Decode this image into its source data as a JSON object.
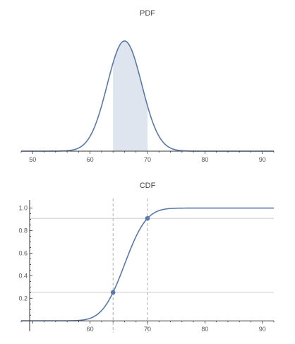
{
  "colors": {
    "curve": "#5b78ad",
    "shade": "#dfe5ef",
    "ref_line": "#b8b8b8"
  },
  "chart_data": [
    {
      "type": "area",
      "title": "PDF",
      "distribution": {
        "name": "normal",
        "mean": 66,
        "sd": 3
      },
      "shaded_interval": [
        64,
        70
      ],
      "xlim": [
        48,
        92
      ],
      "x_ticks": [
        50,
        60,
        70,
        80,
        90
      ],
      "x_tick_labels": [
        "50",
        "60",
        "70",
        "80",
        "90"
      ],
      "y_ticks": [],
      "xlabel": "",
      "ylabel": ""
    },
    {
      "type": "line",
      "title": "CDF",
      "distribution": {
        "name": "normal",
        "mean": 66,
        "sd": 3
      },
      "xlim": [
        48,
        92
      ],
      "ylim": [
        -0.03,
        1.06
      ],
      "x_ticks": [
        60,
        70,
        80,
        90
      ],
      "x_tick_labels": [
        "60",
        "70",
        "80",
        "90"
      ],
      "y_ticks": [
        0.2,
        0.4,
        0.6,
        0.8,
        1.0
      ],
      "y_tick_labels": [
        "0.2",
        "0.4",
        "0.6",
        "0.8",
        "1.0"
      ],
      "points": [
        {
          "x": 64,
          "y": 0.2525
        },
        {
          "x": 70,
          "y": 0.9088
        }
      ],
      "reference_lines": {
        "vertical_x": [
          64,
          70
        ],
        "horizontal_y": [
          0.2525,
          0.9088
        ]
      },
      "xlabel": "",
      "ylabel": ""
    }
  ]
}
